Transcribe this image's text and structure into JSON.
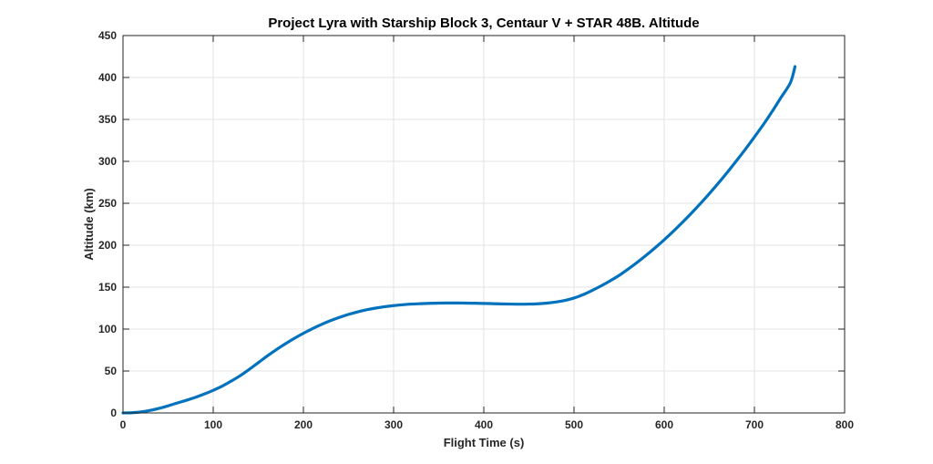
{
  "chart_data": {
    "type": "line",
    "title": "Project Lyra with Starship Block 3, Centaur V + STAR 48B. Altitude",
    "xlabel": "Flight Time (s)",
    "ylabel": "Altitude (km)",
    "xlim": [
      0,
      800
    ],
    "ylim": [
      0,
      450
    ],
    "xticks": [
      0,
      100,
      200,
      300,
      400,
      500,
      600,
      700,
      800
    ],
    "yticks": [
      0,
      50,
      100,
      150,
      200,
      250,
      300,
      350,
      400,
      450
    ],
    "grid": true,
    "line_color": "#0072BD",
    "series": [
      {
        "name": "Altitude",
        "x": [
          0,
          10,
          20,
          30,
          40,
          50,
          60,
          70,
          80,
          90,
          100,
          110,
          120,
          130,
          140,
          150,
          160,
          170,
          180,
          190,
          200,
          210,
          220,
          230,
          240,
          250,
          260,
          270,
          280,
          290,
          300,
          310,
          320,
          330,
          340,
          350,
          360,
          370,
          380,
          390,
          400,
          410,
          420,
          430,
          440,
          450,
          460,
          470,
          480,
          490,
          500,
          510,
          520,
          530,
          540,
          550,
          560,
          570,
          580,
          590,
          600,
          610,
          620,
          630,
          640,
          650,
          660,
          670,
          680,
          690,
          700,
          710,
          720,
          730,
          740,
          745
        ],
        "values": [
          0,
          0.3,
          1.2,
          3,
          5.5,
          8.5,
          11.8,
          15,
          18.5,
          22.5,
          27,
          32,
          38,
          44.5,
          52,
          60,
          68,
          75.5,
          82.5,
          89,
          95,
          100.5,
          105.5,
          110,
          114,
          117.5,
          120.5,
          123,
          125,
          126.7,
          128,
          129,
          129.8,
          130.3,
          130.7,
          131,
          131.1,
          131.1,
          131,
          130.8,
          130.6,
          130.3,
          130,
          129.8,
          129.7,
          129.8,
          130.2,
          131,
          132.3,
          134.2,
          137,
          141,
          146,
          151.5,
          157.5,
          164,
          171.5,
          179.5,
          188,
          197,
          206.5,
          216.5,
          227,
          238,
          249.5,
          261.5,
          274,
          287,
          300.5,
          314.5,
          329,
          344,
          360,
          377,
          394,
          413
        ]
      }
    ]
  }
}
